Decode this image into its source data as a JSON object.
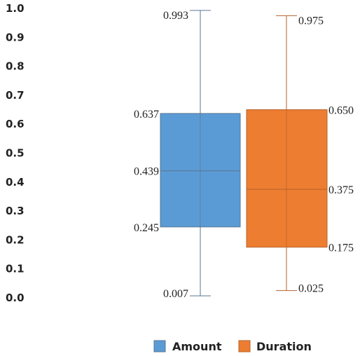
{
  "chart_data": {
    "type": "box",
    "ylim": [
      0.0,
      1.0
    ],
    "y_ticks": [
      "0.0",
      "0.1",
      "0.2",
      "0.3",
      "0.4",
      "0.5",
      "0.6",
      "0.7",
      "0.8",
      "0.9",
      "1.0"
    ],
    "grid": false,
    "legend_position": "bottom",
    "series": [
      {
        "name": "Amount",
        "color": "#5b9bd5",
        "stroke": "#5a7590",
        "min": 0.007,
        "q1": 0.245,
        "median": 0.439,
        "q3": 0.637,
        "max": 0.993,
        "labels": {
          "min": "0.007",
          "q1": "0.245",
          "median": "0.439",
          "q3": "0.637",
          "max": "0.993"
        }
      },
      {
        "name": "Duration",
        "color": "#ed7d31",
        "stroke": "#b5622a",
        "min": 0.025,
        "q1": 0.175,
        "median": 0.375,
        "q3": 0.65,
        "max": 0.975,
        "labels": {
          "min": "0.025",
          "q1": "0.175",
          "q3": "0.650",
          "median": "0.375",
          "max": "0.975"
        }
      }
    ]
  }
}
